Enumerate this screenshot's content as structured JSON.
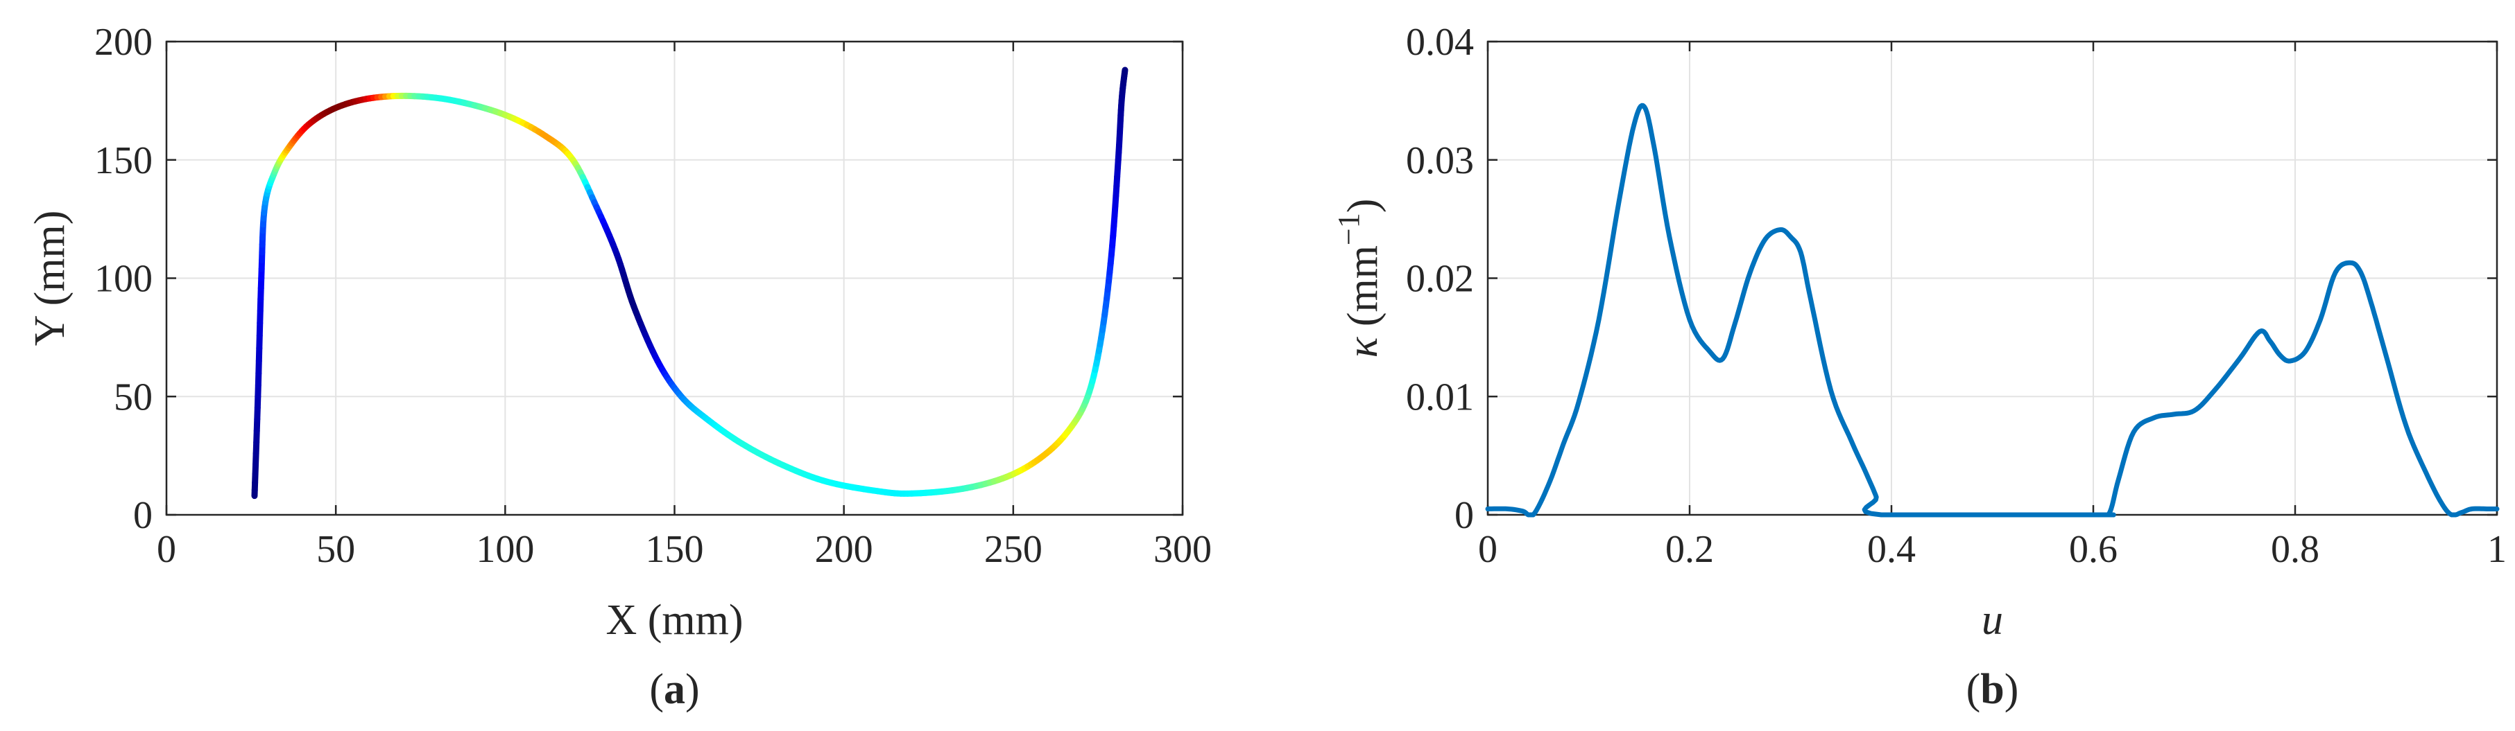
{
  "chart_data": [
    {
      "type": "line",
      "panel_label": {
        "open": "(",
        "letter": "a",
        "close": ")"
      },
      "xlabel": "X (mm)",
      "ylabel": "Y (mm)",
      "xlim": [
        0,
        300
      ],
      "ylim": [
        0,
        200
      ],
      "xticks": [
        0,
        50,
        100,
        150,
        200,
        250,
        300
      ],
      "yticks": [
        0,
        50,
        100,
        150,
        200
      ],
      "xtick_labels": [
        "0",
        "50",
        "100",
        "150",
        "200",
        "250",
        "300"
      ],
      "ytick_labels": [
        "0",
        "50",
        "100",
        "150",
        "200"
      ],
      "grid": true,
      "colormap": "jet",
      "color_encoding": "curvature",
      "series": [
        {
          "x": [
            26,
            27,
            28,
            29,
            32,
            36,
            42,
            50,
            60,
            72,
            85,
            100,
            112,
            120,
            127,
            133,
            138,
            145,
            152,
            160,
            170,
            182,
            195,
            210,
            220,
            235,
            248,
            258,
            266,
            272,
            276,
            279,
            281,
            282,
            283
          ],
          "y": [
            8,
            50,
            100,
            130,
            145,
            155,
            165,
            172,
            176,
            177,
            175,
            169,
            160,
            150,
            130,
            110,
            88,
            65,
            50,
            40,
            30,
            21,
            14,
            10,
            9,
            11,
            16,
            24,
            35,
            50,
            75,
            110,
            150,
            175,
            188
          ],
          "c": [
            0.0,
            0.05,
            0.12,
            0.25,
            0.45,
            0.7,
            0.9,
            1.0,
            0.9,
            0.5,
            0.4,
            0.55,
            0.72,
            0.6,
            0.2,
            0.05,
            0.0,
            0.1,
            0.25,
            0.35,
            0.4,
            0.4,
            0.38,
            0.37,
            0.37,
            0.42,
            0.55,
            0.68,
            0.62,
            0.45,
            0.28,
            0.15,
            0.06,
            0.02,
            0.0
          ]
        }
      ]
    },
    {
      "type": "line",
      "panel_label": {
        "open": "(",
        "letter": "b",
        "close": ")"
      },
      "xlabel": "u",
      "ylabel": {
        "symbol": "κ",
        "unit_open": " (mm",
        "exponent": "−1",
        "unit_close": ")"
      },
      "xlim": [
        0,
        1
      ],
      "ylim": [
        0,
        0.04
      ],
      "xticks": [
        0,
        0.2,
        0.4,
        0.6,
        0.8,
        1
      ],
      "yticks": [
        0,
        0.01,
        0.02,
        0.03,
        0.04
      ],
      "xtick_labels": [
        "0",
        "0.2",
        "0.4",
        "0.6",
        "0.8",
        "1"
      ],
      "ytick_labels": [
        "0",
        "0.01",
        "0.02",
        "0.03",
        "0.04"
      ],
      "grid": true,
      "line_color": "#0072BD",
      "series": [
        {
          "x": [
            0,
            0.02,
            0.035,
            0.045,
            0.06,
            0.075,
            0.09,
            0.11,
            0.13,
            0.145,
            0.155,
            0.165,
            0.18,
            0.2,
            0.22,
            0.233,
            0.245,
            0.26,
            0.275,
            0.29,
            0.3,
            0.31,
            0.32,
            0.34,
            0.36,
            0.375,
            0.385,
            0.39,
            0.6,
            0.615,
            0.625,
            0.64,
            0.66,
            0.68,
            0.7,
            0.72,
            0.745,
            0.765,
            0.775,
            0.785,
            0.795,
            0.81,
            0.825,
            0.84,
            0.855,
            0.865,
            0.875,
            0.89,
            0.91,
            0.93,
            0.945,
            0.955,
            0.965,
            0.975,
            0.99,
            1.0
          ],
          "y": [
            0.0005,
            0.0005,
            0.0003,
            0.0,
            0.0025,
            0.006,
            0.0095,
            0.0165,
            0.0265,
            0.033,
            0.0345,
            0.031,
            0.0235,
            0.0165,
            0.0138,
            0.0132,
            0.0162,
            0.0205,
            0.0233,
            0.0241,
            0.0235,
            0.0222,
            0.0182,
            0.0105,
            0.0063,
            0.0035,
            0.0015,
            0.0,
            0.0,
            0.0,
            0.003,
            0.007,
            0.0082,
            0.0085,
            0.0088,
            0.0105,
            0.0132,
            0.0155,
            0.0147,
            0.0135,
            0.013,
            0.0138,
            0.0165,
            0.0205,
            0.0213,
            0.0205,
            0.018,
            0.0135,
            0.0075,
            0.0035,
            0.001,
            0.0,
            0.0002,
            0.0005,
            0.0005,
            0.0005
          ]
        }
      ]
    }
  ]
}
